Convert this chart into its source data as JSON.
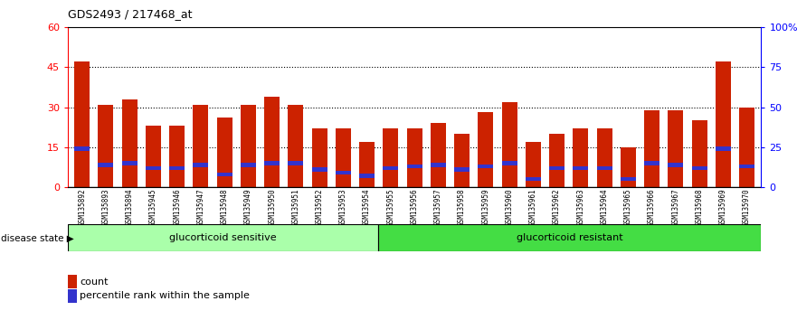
{
  "title": "GDS2493 / 217468_at",
  "samples": [
    "GSM135892",
    "GSM135893",
    "GSM135894",
    "GSM135945",
    "GSM135946",
    "GSM135947",
    "GSM135948",
    "GSM135949",
    "GSM135950",
    "GSM135951",
    "GSM135952",
    "GSM135953",
    "GSM135954",
    "GSM135955",
    "GSM135956",
    "GSM135957",
    "GSM135958",
    "GSM135959",
    "GSM135960",
    "GSM135961",
    "GSM135962",
    "GSM135963",
    "GSM135964",
    "GSM135965",
    "GSM135966",
    "GSM135967",
    "GSM135968",
    "GSM135969",
    "GSM135970"
  ],
  "counts": [
    47,
    31,
    33,
    23,
    23,
    31,
    26,
    31,
    34,
    31,
    22,
    22,
    17,
    22,
    22,
    24,
    20,
    28,
    32,
    17,
    20,
    22,
    22,
    15,
    29,
    29,
    25,
    47,
    30
  ],
  "percentile_ranks": [
    24,
    14,
    15,
    12,
    12,
    14,
    8,
    14,
    15,
    15,
    11,
    9,
    7,
    12,
    13,
    14,
    11,
    13,
    15,
    5,
    12,
    12,
    12,
    5,
    15,
    14,
    12,
    24,
    13
  ],
  "sensitive_count": 13,
  "resistant_count": 16,
  "group1_label": "glucorticoid sensitive",
  "group2_label": "glucorticoid resistant",
  "disease_state_label": "disease state",
  "bar_color": "#cc2200",
  "marker_color": "#3333cc",
  "ylim_left": [
    0,
    60
  ],
  "ylim_right": [
    0,
    100
  ],
  "yticks_left": [
    0,
    15,
    30,
    45,
    60
  ],
  "yticks_right": [
    0,
    25,
    50,
    75,
    100
  ],
  "ytick_labels_right": [
    "0",
    "25",
    "50",
    "75",
    "100%"
  ],
  "background_color": "#ffffff",
  "plot_bg_color": "#ffffff",
  "legend_count_label": "count",
  "legend_pct_label": "percentile rank within the sample",
  "sensitive_color": "#aaffaa",
  "resistant_color": "#44dd44",
  "xtick_bg": "#cccccc"
}
